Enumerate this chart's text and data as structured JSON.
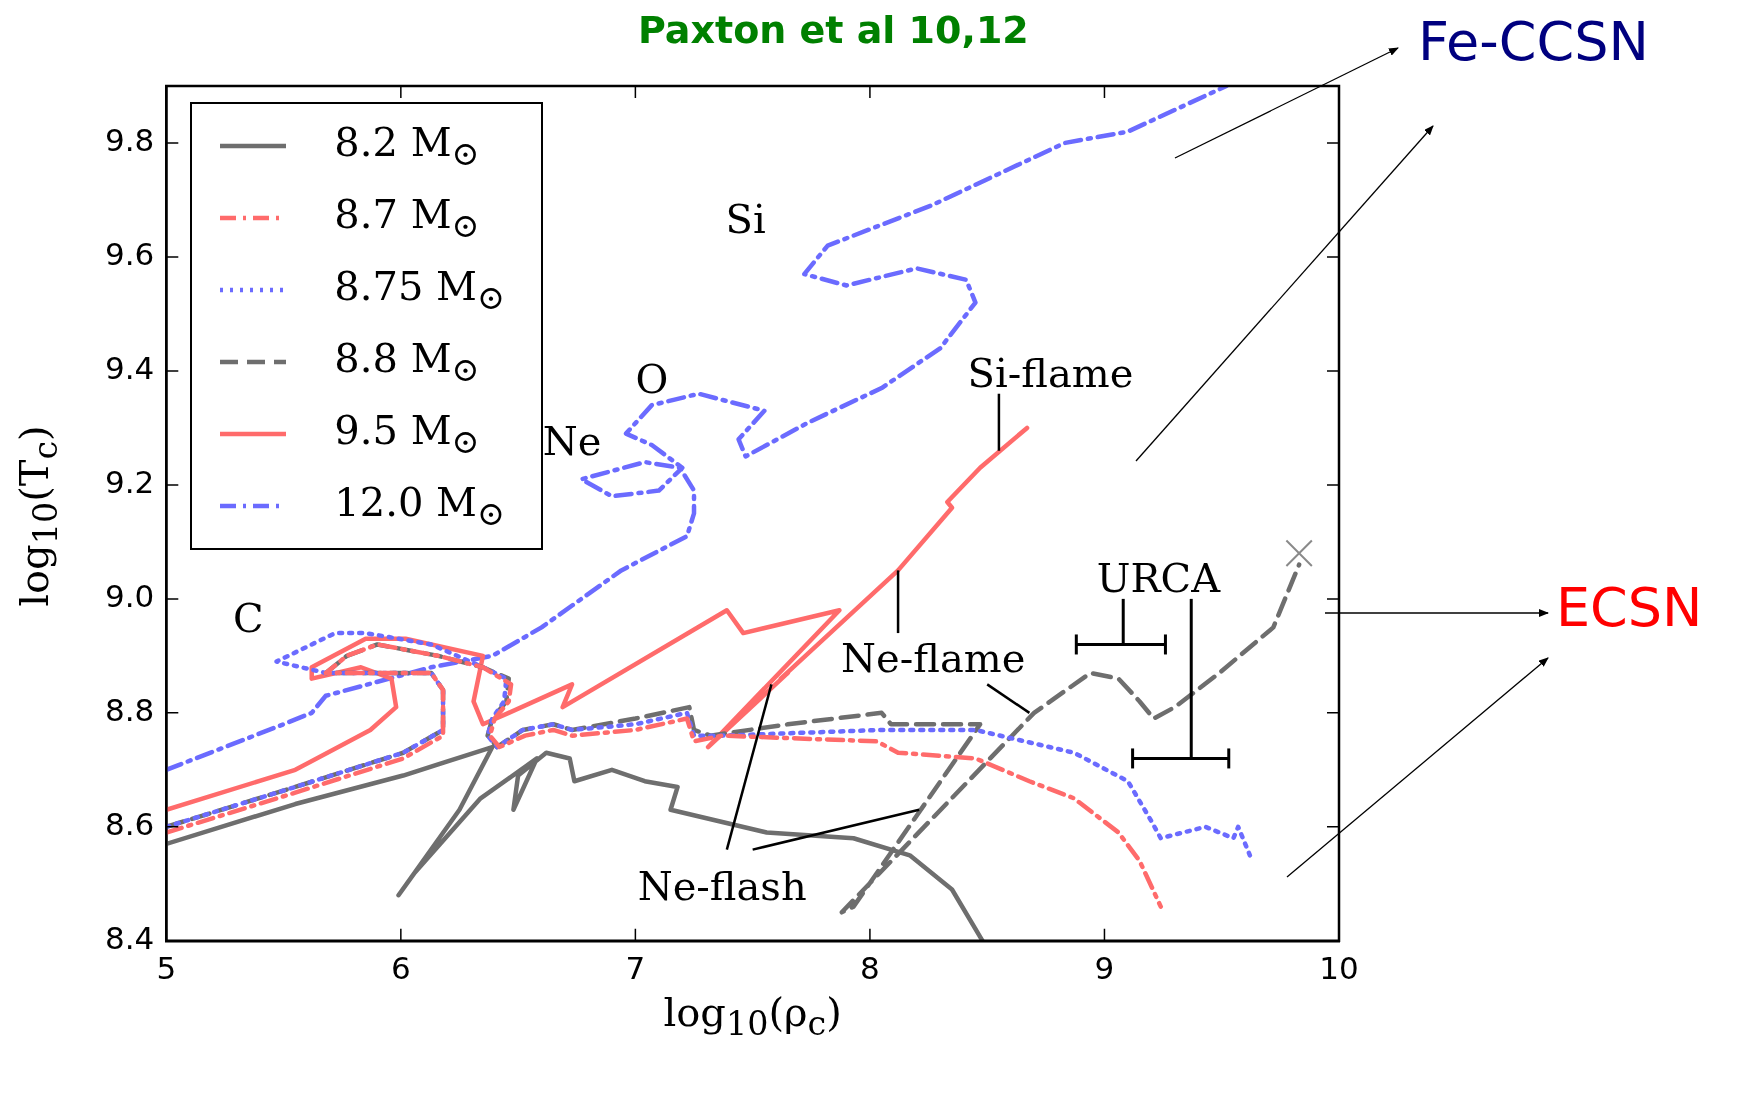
{
  "chart_data": {
    "type": "line",
    "xlabel": "log$_{10}$(ρ$_{c}$)",
    "ylabel": "log$_{10}$(T$_{c}$)",
    "xlim": [
      5,
      10
    ],
    "ylim": [
      8.4,
      9.9
    ],
    "xticks": [
      5,
      6,
      7,
      8,
      9,
      10
    ],
    "yticks": [
      {
        "value": 8.4,
        "label": "8.4"
      },
      {
        "value": 8.6,
        "label": "8.6"
      },
      {
        "value": 8.8,
        "label": "8.8"
      },
      {
        "value": 9,
        "label": "9.0"
      },
      {
        "value": 9.2,
        "label": "9.2"
      },
      {
        "value": 9.4,
        "label": "9.4"
      },
      {
        "value": 9.6,
        "label": "9.6"
      },
      {
        "value": 9.8,
        "label": "9.8"
      }
    ],
    "grid": false,
    "legend": "top left",
    "series": [
      {
        "name": "8.2 M$_{⊙}$",
        "color": "#6e6e6e",
        "line_style": "solid",
        "x": [
          5.0,
          5.55,
          6.01,
          6.39,
          6.25,
          5.99,
          6.06,
          6.34,
          6.58,
          6.48,
          6.5,
          6.62,
          6.72,
          6.74,
          6.9,
          7.04,
          7.18,
          7.15,
          7.56,
          7.93,
          8.17,
          8.35,
          8.48
        ],
        "values": [
          8.57,
          8.64,
          8.69,
          8.74,
          8.63,
          8.48,
          8.52,
          8.65,
          8.72,
          8.63,
          8.69,
          8.73,
          8.72,
          8.68,
          8.7,
          8.68,
          8.67,
          8.63,
          8.59,
          8.58,
          8.55,
          8.49,
          8.4
        ]
      },
      {
        "name": "8.7 M$_{⊙}$",
        "color": "#ff6b6b",
        "line_style": "dashdot",
        "x": [
          5.0,
          5.55,
          6.01,
          6.18,
          6.18,
          6.13,
          5.68,
          5.77,
          5.9,
          6.16,
          6.35,
          6.47,
          6.46,
          6.4,
          6.38,
          6.42,
          6.53,
          6.65,
          6.73,
          7.0,
          7.22,
          7.25,
          7.37,
          8.03,
          8.12,
          8.45,
          8.68,
          8.87,
          9.06,
          9.15,
          9.24
        ],
        "values": [
          8.59,
          8.66,
          8.72,
          8.76,
          8.84,
          8.87,
          8.87,
          8.9,
          8.92,
          8.9,
          8.88,
          8.85,
          8.82,
          8.79,
          8.76,
          8.74,
          8.76,
          8.77,
          8.76,
          8.77,
          8.79,
          8.75,
          8.76,
          8.75,
          8.73,
          8.72,
          8.68,
          8.65,
          8.59,
          8.54,
          8.46
        ]
      },
      {
        "name": "8.75 M$_{⊙}$",
        "color": "#6b6bff",
        "line_style": "dotted",
        "x": [
          5.0,
          5.55,
          6.01,
          6.18,
          6.18,
          6.13,
          5.68,
          5.47,
          5.72,
          5.85,
          6.13,
          6.35,
          6.45,
          6.44,
          6.39,
          6.37,
          6.41,
          6.52,
          6.65,
          6.73,
          7.0,
          7.22,
          7.25,
          7.37,
          8.05,
          8.45,
          8.87,
          9.1,
          9.2,
          9.24,
          9.43,
          9.55,
          9.57,
          9.62
        ],
        "values": [
          8.6,
          8.67,
          8.73,
          8.77,
          8.84,
          8.87,
          8.87,
          8.89,
          8.94,
          8.94,
          8.92,
          8.88,
          8.86,
          8.82,
          8.79,
          8.76,
          8.74,
          8.77,
          8.78,
          8.77,
          8.78,
          8.8,
          8.76,
          8.76,
          8.77,
          8.77,
          8.73,
          8.68,
          8.61,
          8.58,
          8.6,
          8.58,
          8.6,
          8.55
        ]
      },
      {
        "name": "8.8 M$_{⊙}$",
        "color": "#6e6e6e",
        "line_style": "dashed",
        "x": [
          5.0,
          5.55,
          6.01,
          6.18,
          6.18,
          6.13,
          5.68,
          5.77,
          5.9,
          6.16,
          6.35,
          6.46,
          6.45,
          6.39,
          6.37,
          6.41,
          6.52,
          6.65,
          6.73,
          7.0,
          7.23,
          7.25,
          7.32,
          7.65,
          8.05,
          8.09,
          8.47,
          7.93,
          7.88,
          8.7,
          8.94,
          9.06,
          9.15,
          9.21,
          9.3,
          9.49,
          9.72,
          9.83
        ],
        "values": [
          8.6,
          8.67,
          8.73,
          8.77,
          8.84,
          8.87,
          8.87,
          8.9,
          8.92,
          8.9,
          8.88,
          8.86,
          8.82,
          8.79,
          8.76,
          8.74,
          8.77,
          8.78,
          8.77,
          8.79,
          8.81,
          8.77,
          8.76,
          8.78,
          8.8,
          8.78,
          8.78,
          8.46,
          8.45,
          8.8,
          8.87,
          8.86,
          8.82,
          8.79,
          8.81,
          8.87,
          8.95,
          9.06
        ]
      },
      {
        "name": "9.5 M$_{⊙}$",
        "color": "#ff6b6b",
        "line_style": "solid",
        "x": [
          5.0,
          5.55,
          5.87,
          5.98,
          5.96,
          5.83,
          5.62,
          5.62,
          5.85,
          6.02,
          6.35,
          6.31,
          6.35,
          6.46,
          6.73,
          6.69,
          7.39,
          7.46,
          7.87,
          7.31,
          7.65,
          7.62,
          8.12,
          8.35,
          8.33,
          8.47,
          8.67
        ],
        "values": [
          8.63,
          8.7,
          8.77,
          8.81,
          8.86,
          8.88,
          8.86,
          8.88,
          8.93,
          8.93,
          8.9,
          8.82,
          8.78,
          8.8,
          8.85,
          8.81,
          8.98,
          8.94,
          8.98,
          8.74,
          8.87,
          8.86,
          9.05,
          9.16,
          9.17,
          9.23,
          9.3
        ]
      },
      {
        "name": "12.0 M$_{⊙}$",
        "color": "#6b6bff",
        "line_style": "dashdot",
        "x": [
          5.0,
          5.5,
          5.62,
          5.68,
          6.13,
          6.39,
          6.6,
          6.94,
          7.22,
          7.25,
          7.25,
          7.19,
          7.04,
          6.77,
          6.9,
          7.1,
          7.2,
          7.07,
          6.96,
          7.07,
          7.27,
          7.55,
          7.44,
          7.47,
          7.74,
          8.05,
          8.3,
          8.45,
          8.41,
          8.2,
          7.9,
          7.72,
          7.82,
          8.26,
          8.83,
          9.1,
          9.52
        ],
        "values": [
          8.7,
          8.78,
          8.8,
          8.83,
          8.88,
          8.9,
          8.95,
          9.05,
          9.11,
          9.15,
          9.19,
          9.23,
          9.24,
          9.21,
          9.18,
          9.19,
          9.23,
          9.27,
          9.29,
          9.34,
          9.36,
          9.33,
          9.28,
          9.25,
          9.31,
          9.37,
          9.44,
          9.52,
          9.56,
          9.58,
          9.55,
          9.57,
          9.62,
          9.69,
          9.8,
          9.82,
          9.9
        ]
      },
      {
        "type": "scatter",
        "color": "#8a8a8a",
        "marker": "cross",
        "x": [
          9.83
        ],
        "values": [
          9.08
        ]
      }
    ],
    "annotations": [
      "Paxton et al 10,12",
      "Fe-CCSN",
      "ECSN",
      "C",
      "Ne",
      "O",
      "Si",
      {
        "text": "Si-flame",
        "x": 8.55,
        "y": 9.26
      },
      {
        "text": "Ne-flame",
        "x": 8.12,
        "y": 9.05
      },
      {
        "text": "Ne-flash",
        "x": 7.58,
        "y": 8.85
      },
      "URCA"
    ]
  }
}
